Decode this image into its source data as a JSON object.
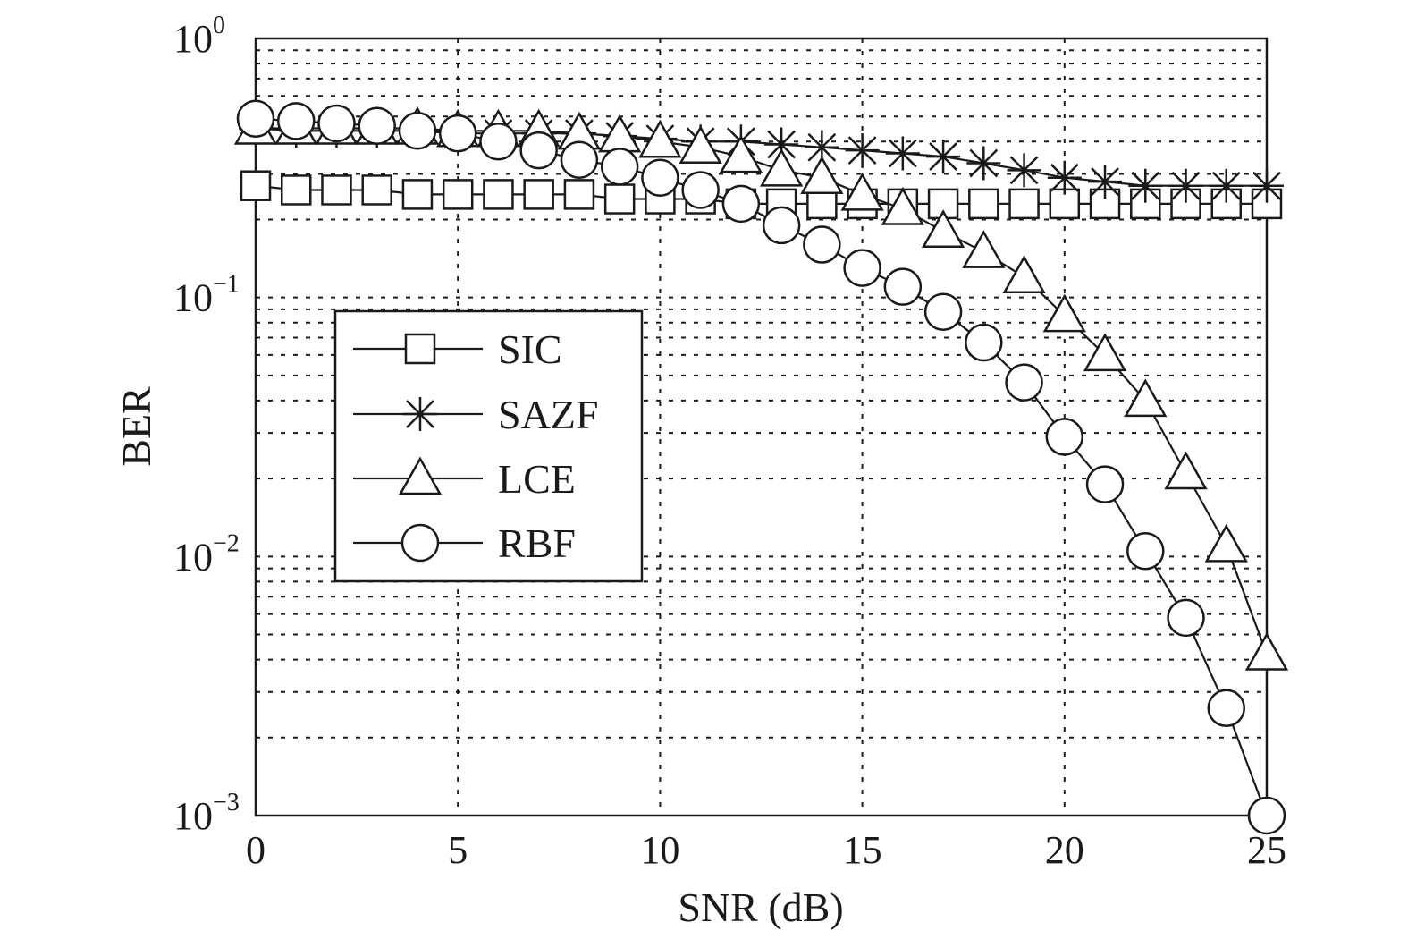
{
  "chart_data": {
    "type": "line",
    "xlabel": "SNR (dB)",
    "ylabel": "BER",
    "xlim": [
      0,
      25
    ],
    "ylim": [
      0.001,
      1
    ],
    "yscale": "log",
    "grid": true,
    "legend_position": "center-left",
    "x_ticks": [
      "0",
      "5",
      "10",
      "15",
      "20",
      "25"
    ],
    "y_ticks": [
      {
        "base": "10",
        "exp": "0"
      },
      {
        "base": "10",
        "exp": "−1"
      },
      {
        "base": "10",
        "exp": "−2"
      },
      {
        "base": "10",
        "exp": "−3"
      }
    ],
    "x": [
      0,
      1,
      2,
      3,
      4,
      5,
      6,
      7,
      8,
      9,
      10,
      11,
      12,
      13,
      14,
      15,
      16,
      17,
      18,
      19,
      20,
      21,
      22,
      23,
      24,
      25
    ],
    "series": [
      {
        "name": "SIC",
        "marker": "square",
        "values": [
          0.27,
          0.26,
          0.26,
          0.26,
          0.25,
          0.25,
          0.25,
          0.25,
          0.25,
          0.24,
          0.24,
          0.24,
          0.23,
          0.23,
          0.23,
          0.23,
          0.23,
          0.23,
          0.23,
          0.23,
          0.23,
          0.23,
          0.23,
          0.23,
          0.23,
          0.23
        ]
      },
      {
        "name": "SAZF",
        "marker": "asterisk",
        "values": [
          0.45,
          0.44,
          0.44,
          0.44,
          0.44,
          0.43,
          0.43,
          0.43,
          0.43,
          0.42,
          0.41,
          0.4,
          0.4,
          0.39,
          0.38,
          0.37,
          0.36,
          0.35,
          0.33,
          0.31,
          0.29,
          0.28,
          0.27,
          0.27,
          0.27,
          0.27
        ]
      },
      {
        "name": "LCE",
        "marker": "triangle",
        "values": [
          0.45,
          0.45,
          0.45,
          0.45,
          0.45,
          0.44,
          0.44,
          0.44,
          0.43,
          0.42,
          0.4,
          0.38,
          0.35,
          0.31,
          0.29,
          0.25,
          0.22,
          0.18,
          0.15,
          0.12,
          0.085,
          0.06,
          0.04,
          0.021,
          0.011,
          0.0042
        ]
      },
      {
        "name": "RBF",
        "marker": "circle",
        "values": [
          0.49,
          0.48,
          0.47,
          0.46,
          0.44,
          0.43,
          0.4,
          0.37,
          0.34,
          0.32,
          0.29,
          0.26,
          0.23,
          0.19,
          0.16,
          0.13,
          0.11,
          0.088,
          0.067,
          0.047,
          0.029,
          0.019,
          0.0105,
          0.0058,
          0.0026,
          0.001
        ]
      }
    ]
  }
}
